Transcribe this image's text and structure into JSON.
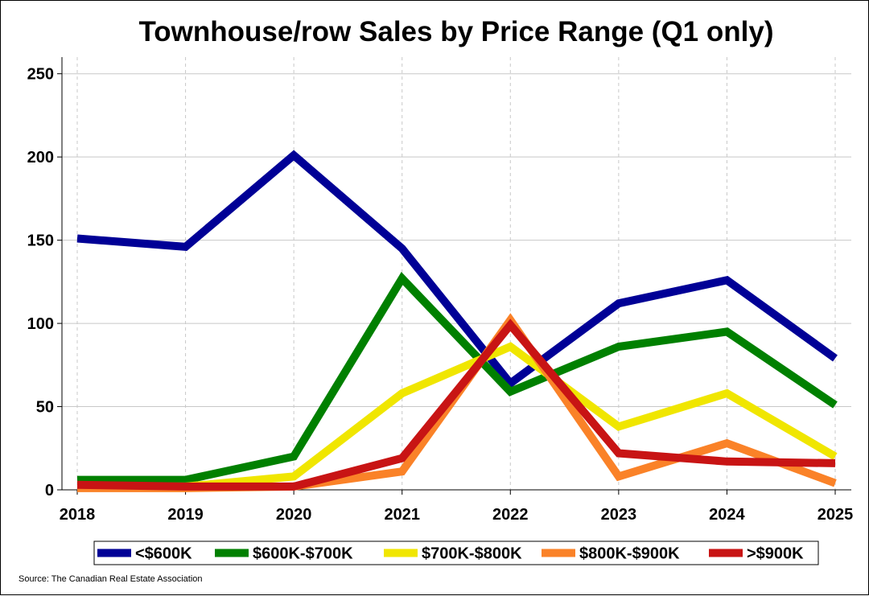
{
  "chart_data": {
    "type": "line",
    "title": "Townhouse/row Sales by Price Range (Q1 only)",
    "xlabel": "",
    "ylabel": "",
    "x": [
      "2018",
      "2019",
      "2020",
      "2021",
      "2022",
      "2023",
      "2024",
      "2025"
    ],
    "ylim": [
      0,
      260
    ],
    "yticks": [
      0,
      50,
      100,
      150,
      200,
      250
    ],
    "grid": {
      "horizontal": true,
      "vertical": "dashed"
    },
    "legend_position": "bottom",
    "series": [
      {
        "name": "<$600K",
        "color": "#000096",
        "values": [
          151,
          146,
          201,
          145,
          64,
          112,
          126,
          79
        ]
      },
      {
        "name": "$600K-$700K",
        "color": "#008000",
        "values": [
          6,
          6,
          20,
          127,
          59,
          86,
          95,
          51
        ]
      },
      {
        "name": "$700K-$800K",
        "color": "#f0e600",
        "values": [
          2,
          2,
          8,
          58,
          86,
          38,
          58,
          20
        ]
      },
      {
        "name": "$800K-$900K",
        "color": "#fa8228",
        "values": [
          1,
          1,
          2,
          11,
          102,
          8,
          28,
          4
        ]
      },
      {
        "name": ">$900K",
        "color": "#c81414",
        "values": [
          3,
          2,
          2,
          19,
          99,
          22,
          17,
          16
        ]
      }
    ],
    "source": "Source: The Canadian Real Estate Association"
  }
}
